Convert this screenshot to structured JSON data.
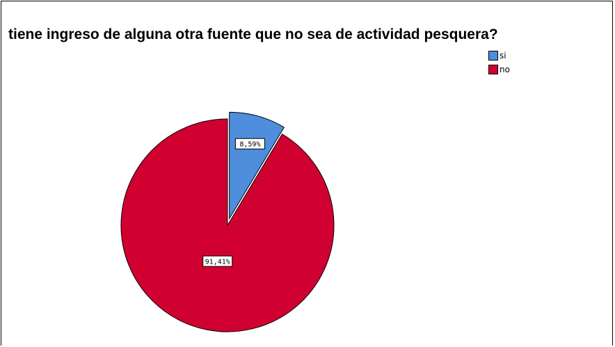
{
  "chart_data": {
    "type": "pie",
    "title": "tiene ingreso de alguna otra fuente que no sea de actividad pesquera?",
    "categories": [
      "si",
      "no"
    ],
    "values": [
      8.59,
      91.41
    ],
    "data_labels": [
      "8,59%",
      "91,41%"
    ],
    "colors": [
      "#4f8ddd",
      "#d00030"
    ],
    "legend_position": "top-right",
    "exploded": [
      "si"
    ]
  }
}
